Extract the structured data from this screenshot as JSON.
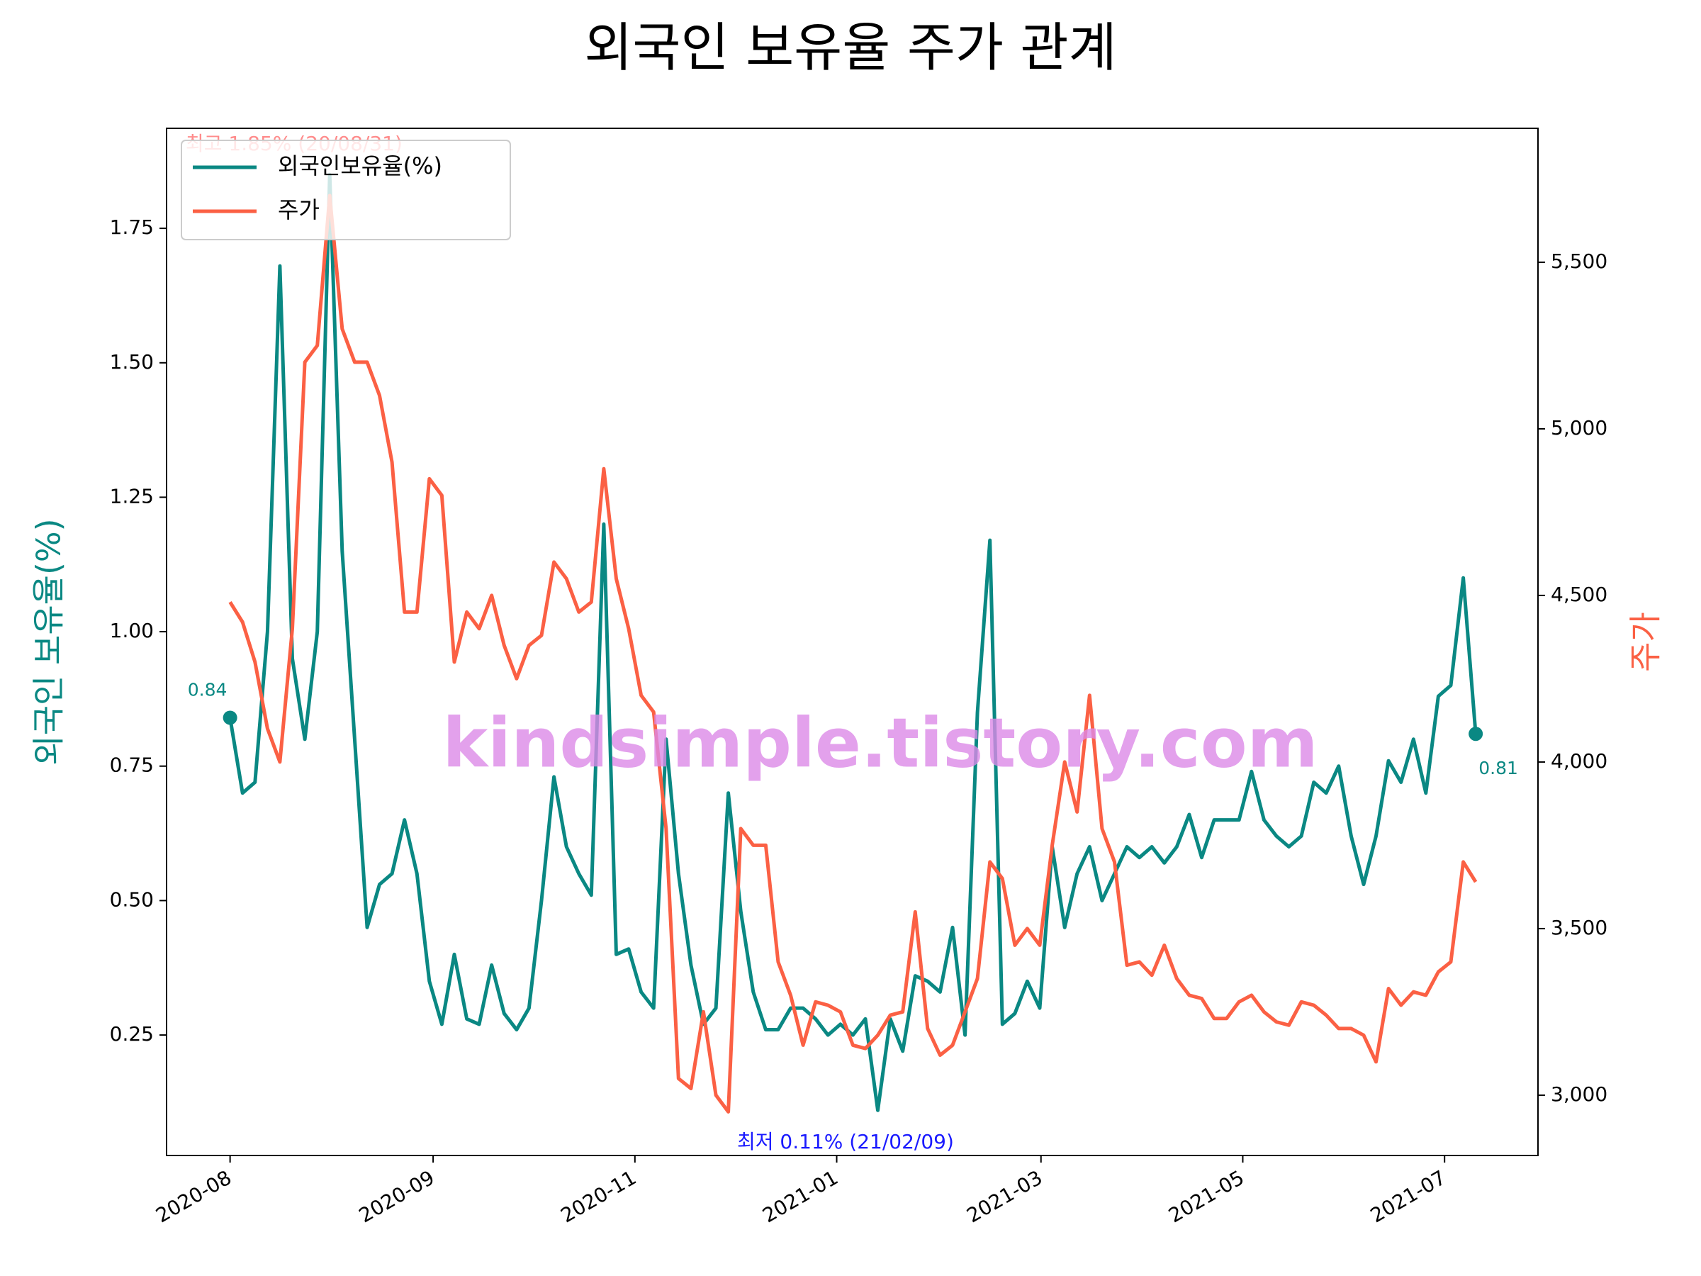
{
  "chart_data": {
    "type": "line",
    "title": "외국인 보유율 주가 관계",
    "ylabel": "외국인 보유율(%)",
    "y2label": "주가",
    "legend": "upper left",
    "watermark": "kindsimple.tistory.com",
    "annotations": {
      "start": "0.84",
      "end": "0.81",
      "max": "최고 1.85% (20/08/31)",
      "min": "최저 0.11% (21/02/09)"
    },
    "xlim": [
      -5.1,
      105.0
    ],
    "xticks": [
      {
        "value": 0,
        "label": "2020-08"
      },
      {
        "value": 16.3,
        "label": "2020-09"
      },
      {
        "value": 32.5,
        "label": "2020-11"
      },
      {
        "value": 48.7,
        "label": "2021-01"
      },
      {
        "value": 65.1,
        "label": "2021-03"
      },
      {
        "value": 81.3,
        "label": "2021-05"
      },
      {
        "value": 97.5,
        "label": "2021-07"
      }
    ],
    "ylim": [
      0.026,
      1.936
    ],
    "yticks": [
      {
        "value": 0.25,
        "label": "0.25"
      },
      {
        "value": 0.5,
        "label": "0.50"
      },
      {
        "value": 0.75,
        "label": "0.75"
      },
      {
        "value": 1.0,
        "label": "1.00"
      },
      {
        "value": 1.25,
        "label": "1.25"
      },
      {
        "value": 1.5,
        "label": "1.50"
      },
      {
        "value": 1.75,
        "label": "1.75"
      }
    ],
    "y2lim": [
      2819,
      5902
    ],
    "y2ticks": [
      {
        "value": 3000,
        "label": "3,000"
      },
      {
        "value": 3500,
        "label": "3,500"
      },
      {
        "value": 4000,
        "label": "4,000"
      },
      {
        "value": 4500,
        "label": "4,500"
      },
      {
        "value": 5000,
        "label": "5,000"
      },
      {
        "value": 5500,
        "label": "5,500"
      }
    ],
    "series": [
      {
        "name": "외국인보유율(%)",
        "color": "#0a8883",
        "values": [
          0.84,
          0.7,
          0.72,
          1.0,
          1.68,
          0.95,
          0.8,
          1.0,
          1.85,
          1.15,
          0.8,
          0.45,
          0.53,
          0.55,
          0.65,
          0.55,
          0.35,
          0.27,
          0.4,
          0.28,
          0.27,
          0.38,
          0.29,
          0.26,
          0.3,
          0.5,
          0.73,
          0.6,
          0.55,
          0.51,
          1.2,
          0.4,
          0.41,
          0.33,
          0.3,
          0.8,
          0.55,
          0.38,
          0.27,
          0.3,
          0.7,
          0.48,
          0.33,
          0.26,
          0.26,
          0.3,
          0.3,
          0.28,
          0.25,
          0.27,
          0.25,
          0.28,
          0.11,
          0.28,
          0.22,
          0.36,
          0.35,
          0.33,
          0.45,
          0.25,
          0.85,
          1.17,
          0.27,
          0.29,
          0.35,
          0.3,
          0.6,
          0.45,
          0.55,
          0.6,
          0.5,
          0.55,
          0.6,
          0.58,
          0.6,
          0.57,
          0.6,
          0.66,
          0.58,
          0.65,
          0.65,
          0.65,
          0.74,
          0.65,
          0.62,
          0.6,
          0.62,
          0.72,
          0.7,
          0.75,
          0.62,
          0.53,
          0.62,
          0.76,
          0.72,
          0.8,
          0.7,
          0.88,
          0.9,
          1.1,
          0.81
        ]
      },
      {
        "name": "주가",
        "color": "#fb6044",
        "axis": "y2",
        "values": [
          4480,
          4420,
          4300,
          4100,
          4000,
          4400,
          5200,
          5250,
          5700,
          5300,
          5200,
          5200,
          5100,
          4900,
          4450,
          4450,
          4850,
          4800,
          4300,
          4450,
          4400,
          4500,
          4350,
          4250,
          4350,
          4380,
          4600,
          4550,
          4450,
          4480,
          4880,
          4550,
          4400,
          4200,
          4150,
          3800,
          3050,
          3020,
          3250,
          3000,
          2950,
          3800,
          3750,
          3750,
          3400,
          3300,
          3150,
          3280,
          3270,
          3250,
          3150,
          3140,
          3180,
          3240,
          3250,
          3550,
          3200,
          3120,
          3150,
          3250,
          3350,
          3700,
          3650,
          3450,
          3500,
          3450,
          3750,
          4000,
          3850,
          4200,
          3800,
          3700,
          3390,
          3400,
          3360,
          3450,
          3350,
          3300,
          3290,
          3230,
          3230,
          3280,
          3300,
          3250,
          3220,
          3210,
          3280,
          3270,
          3240,
          3200,
          3200,
          3180,
          3100,
          3320,
          3270,
          3310,
          3300,
          3370,
          3400,
          3700,
          3640
        ]
      }
    ]
  }
}
